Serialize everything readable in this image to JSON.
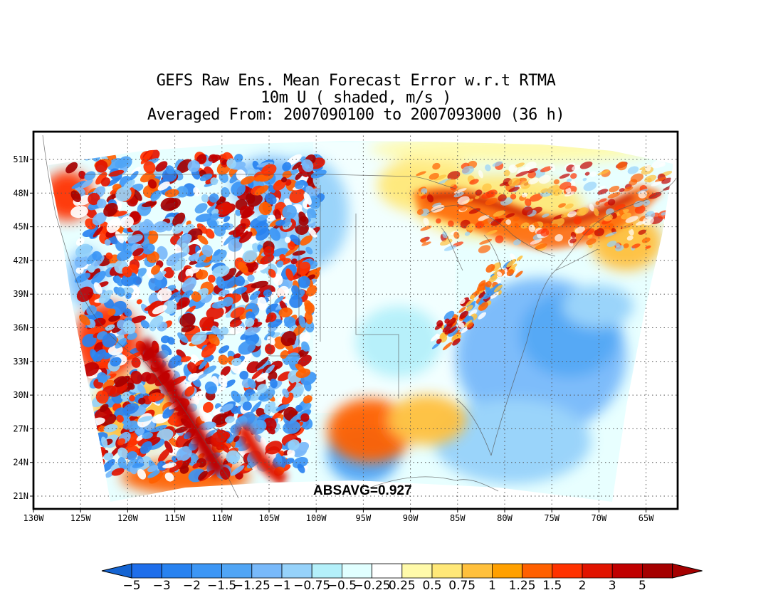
{
  "title": {
    "line1": "GEFS Raw Ens. Mean Forecast Error w.r.t RTMA",
    "line2": "10m U ( shaded, m/s )",
    "line3": "Averaged From: 2007090100 to 2007093000 (36 h)"
  },
  "annotation": "ABSAVG=0.927",
  "map": {
    "region": "Continental United States",
    "projection": "lambert-conformal",
    "lon_range": [
      -130,
      -60
    ],
    "lat_range": [
      20,
      53
    ],
    "grid": "dotted",
    "coastlines": true,
    "state_boundaries": true
  },
  "lat_ticks": [
    "51N",
    "48N",
    "45N",
    "42N",
    "39N",
    "36N",
    "33N",
    "30N",
    "27N",
    "24N",
    "21N"
  ],
  "lon_ticks": [
    "130W",
    "125W",
    "120W",
    "115W",
    "110W",
    "105W",
    "100W",
    "95W",
    "90W",
    "85W",
    "80W",
    "75W",
    "70W",
    "65W"
  ],
  "colorbar": {
    "labels": [
      "-5",
      "-3",
      "-2",
      "-1.5",
      "-1.25",
      "-1",
      "-0.75",
      "-0.5",
      "-0.25",
      "0.25",
      "0.5",
      "0.75",
      "1",
      "1.25",
      "1.5",
      "2",
      "3",
      "5"
    ],
    "colors": [
      "#1e6eeb",
      "#2882f0",
      "#3c96f5",
      "#50a5f5",
      "#78b9fa",
      "#96d2fa",
      "#b4f0fa",
      "#e1ffff",
      "#ffffff",
      "#fffaaa",
      "#ffe878",
      "#ffc03c",
      "#ffa000",
      "#ff6000",
      "#ff3200",
      "#e11400",
      "#c00000",
      "#a50000"
    ],
    "low_color": "#1464d2",
    "high_color": "#a50000"
  },
  "fields": {
    "water": "#ffffff",
    "frame": "#000000"
  }
}
